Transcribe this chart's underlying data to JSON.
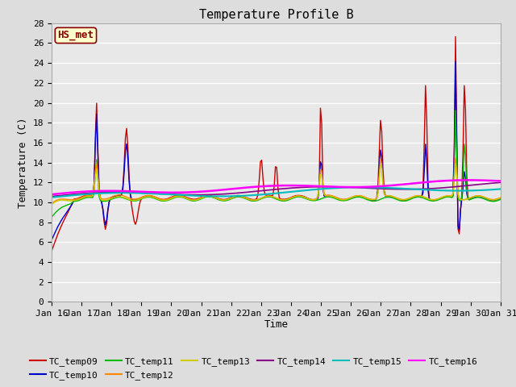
{
  "title": "Temperature Profile B",
  "xlabel": "Time",
  "ylabel": "Temperature (C)",
  "ylim": [
    0,
    28
  ],
  "yticks": [
    0,
    2,
    4,
    6,
    8,
    10,
    12,
    14,
    16,
    18,
    20,
    22,
    24,
    26,
    28
  ],
  "series_colors": {
    "TC_temp09": "#cc0000",
    "TC_temp10": "#0000cc",
    "TC_temp11": "#00bb00",
    "TC_temp12": "#ff8800",
    "TC_temp13": "#cccc00",
    "TC_temp14": "#880088",
    "TC_temp15": "#00bbbb",
    "TC_temp16": "#ff00ff"
  },
  "annotation_text": "HS_met",
  "annotation_box_color": "#ffffcc",
  "annotation_border_color": "#880000",
  "fig_bg_color": "#dddddd",
  "plot_bg_color": "#e8e8e8",
  "grid_color": "#ffffff",
  "title_fontsize": 11,
  "tick_fontsize": 8,
  "label_fontsize": 9,
  "legend_fontsize": 8
}
